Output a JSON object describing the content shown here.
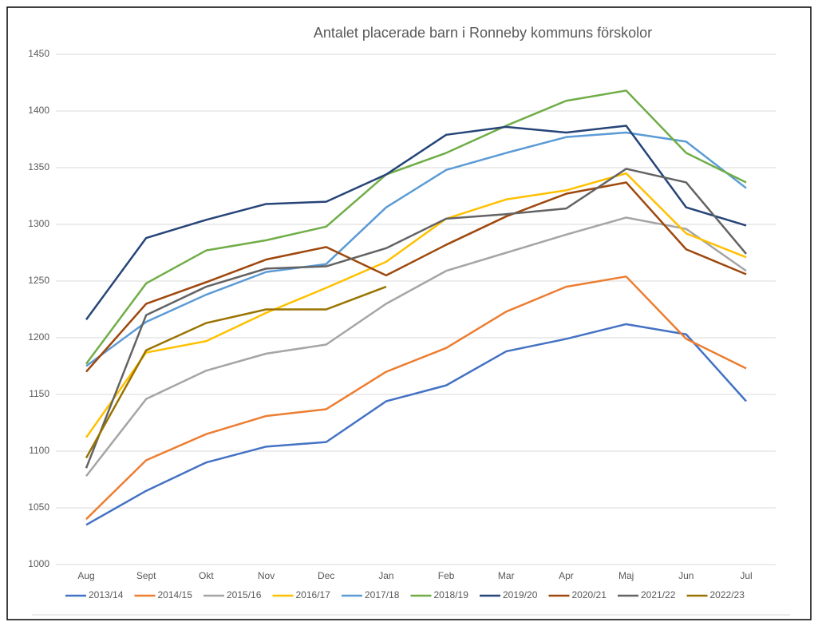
{
  "chart_data": {
    "type": "line",
    "title": "Antalet placerade barn i Ronneby kommuns förskolor",
    "categories": [
      "Aug",
      "Sept",
      "Okt",
      "Nov",
      "Dec",
      "Jan",
      "Feb",
      "Mar",
      "Apr",
      "Maj",
      "Jun",
      "Jul"
    ],
    "ylim": [
      1000,
      1450
    ],
    "yticks": [
      1000,
      1050,
      1100,
      1150,
      1200,
      1250,
      1300,
      1350,
      1400,
      1450
    ],
    "grid": true,
    "legend": "bottom",
    "series": [
      {
        "name": "2013/14",
        "color": "#4472c4",
        "values": [
          1035,
          1065,
          1090,
          1104,
          1108,
          1144,
          1158,
          1188,
          1199,
          1212,
          1203,
          1144
        ]
      },
      {
        "name": "2014/15",
        "color": "#ed7d31",
        "values": [
          1040,
          1092,
          1115,
          1131,
          1137,
          1170,
          1191,
          1223,
          1245,
          1254,
          1199,
          1173
        ]
      },
      {
        "name": "2015/16",
        "color": "#a5a5a5",
        "values": [
          1078,
          1146,
          1171,
          1186,
          1194,
          1230,
          1259,
          1275,
          1291,
          1306,
          1296,
          1259
        ]
      },
      {
        "name": "2016/17",
        "color": "#ffc000",
        "values": [
          1112,
          1187,
          1197,
          1222,
          1244,
          1267,
          1305,
          1322,
          1330,
          1345,
          1292,
          1271
        ]
      },
      {
        "name": "2017/18",
        "color": "#5b9bd5",
        "values": [
          1175,
          1214,
          1238,
          1258,
          1265,
          1315,
          1348,
          1363,
          1377,
          1381,
          1373,
          1332
        ]
      },
      {
        "name": "2018/19",
        "color": "#70ad47",
        "values": [
          1177,
          1248,
          1277,
          1286,
          1298,
          1344,
          1363,
          1387,
          1409,
          1418,
          1363,
          1337
        ]
      },
      {
        "name": "2019/20",
        "color": "#264478",
        "values": [
          1216,
          1288,
          1304,
          1318,
          1320,
          1344,
          1379,
          1386,
          1381,
          1387,
          1315,
          1299
        ]
      },
      {
        "name": "2020/21",
        "color": "#9e480e",
        "values": [
          1170,
          1230,
          1249,
          1269,
          1280,
          1255,
          1282,
          1307,
          1327,
          1337,
          1278,
          1256
        ]
      },
      {
        "name": "2021/22",
        "color": "#636363",
        "values": [
          1085,
          1220,
          1245,
          1261,
          1263,
          1279,
          1305,
          1309,
          1314,
          1349,
          1337,
          1274
        ]
      },
      {
        "name": "2022/23",
        "color": "#997300",
        "values": [
          1094,
          1189,
          1213,
          1225,
          1225,
          1245,
          null,
          null,
          null,
          null,
          null,
          null
        ]
      }
    ]
  }
}
